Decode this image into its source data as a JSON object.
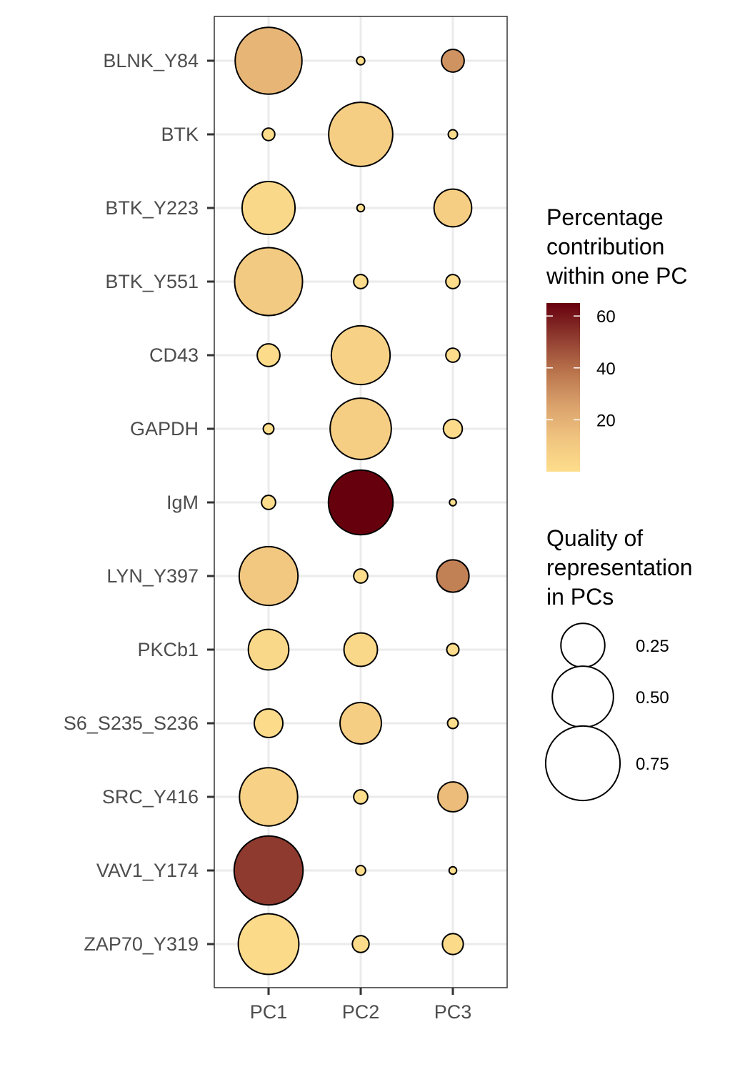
{
  "chart_data": {
    "type": "scatter",
    "subtype": "balloon",
    "rows": [
      "BLNK_Y84",
      "BTK",
      "BTK_Y223",
      "BTK_Y551",
      "CD43",
      "GAPDH",
      "IgM",
      "LYN_Y397",
      "PKCb1",
      "S6_S235_S236",
      "SRC_Y416",
      "VAV1_Y174",
      "ZAP70_Y319"
    ],
    "columns": [
      "PC1",
      "PC2",
      "PC3"
    ],
    "quality": [
      [
        0.6,
        0.005,
        0.06
      ],
      [
        0.015,
        0.55,
        0.007
      ],
      [
        0.37,
        0.004,
        0.18
      ],
      [
        0.62,
        0.02,
        0.02
      ],
      [
        0.06,
        0.46,
        0.02
      ],
      [
        0.01,
        0.5,
        0.04
      ],
      [
        0.02,
        0.56,
        0.003
      ],
      [
        0.46,
        0.02,
        0.13
      ],
      [
        0.21,
        0.14,
        0.014
      ],
      [
        0.1,
        0.22,
        0.01
      ],
      [
        0.45,
        0.02,
        0.11
      ],
      [
        0.64,
        0.008,
        0.004
      ],
      [
        0.49,
        0.03,
        0.05
      ]
    ],
    "contribution": [
      [
        18,
        0.2,
        30
      ],
      [
        0.5,
        8,
        0.3
      ],
      [
        3,
        0.1,
        8
      ],
      [
        10,
        0.5,
        0.5
      ],
      [
        1,
        6,
        0.4
      ],
      [
        0.2,
        8,
        1
      ],
      [
        0.3,
        65,
        0.1
      ],
      [
        11,
        0.4,
        35
      ],
      [
        3,
        3,
        0.5
      ],
      [
        1.5,
        8,
        0.2
      ],
      [
        6,
        0.6,
        16
      ],
      [
        52,
        0.4,
        0.1
      ],
      [
        2,
        1,
        2
      ]
    ],
    "color_legend": {
      "title": [
        "Percentage",
        "contribution",
        "within one PC"
      ],
      "ticks": [
        20,
        40,
        60
      ],
      "range": [
        0,
        65
      ],
      "colors": [
        "#FDDE8C",
        "#F0C47F",
        "#D9A06B",
        "#B8724B",
        "#8E3A2F",
        "#67000D"
      ]
    },
    "size_legend": {
      "title": [
        "Quality of",
        "representation",
        "in PCs"
      ],
      "breaks": [
        0.25,
        0.5,
        0.75
      ],
      "labels": [
        "0.25",
        "0.50",
        "0.75"
      ]
    }
  }
}
